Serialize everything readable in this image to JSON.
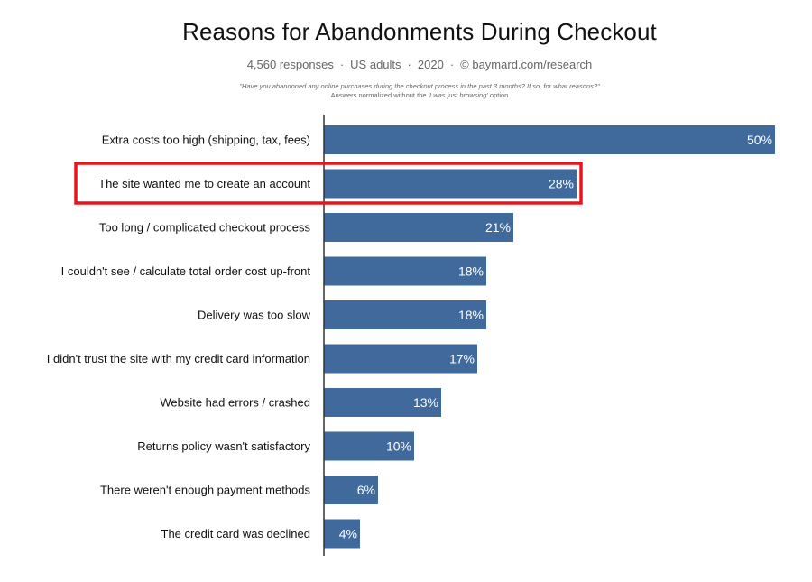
{
  "header": {
    "title": "Reasons for Abandonments During Checkout",
    "subtitle_parts": [
      "4,560 responses",
      "US adults",
      "2020",
      "© baymard.com/research"
    ],
    "question": "\"Have you abandoned any online purchases during the checkout process in the past 3 months? If so, for what reasons?\"",
    "note_prefix": "Answers normalized without the ",
    "note_italic": "'I was just browsing'",
    "note_suffix": " option"
  },
  "colors": {
    "bar": "#3f6a9b",
    "highlight_box": "#e8141c",
    "axis": "#333333"
  },
  "chart_data": {
    "type": "bar",
    "orientation": "horizontal",
    "title": "Reasons for Abandonments During Checkout",
    "categories": [
      "Extra costs too high (shipping, tax, fees)",
      "The site wanted me to create an account",
      "Too long / complicated checkout process",
      "I couldn't see / calculate total order cost up-front",
      "Delivery was too slow",
      "I didn't trust the site with my credit card information",
      "Website had errors / crashed",
      "Returns policy wasn't satisfactory",
      "There weren't enough payment methods",
      "The credit card was declined"
    ],
    "values": [
      50,
      28,
      21,
      18,
      18,
      17,
      13,
      10,
      6,
      4
    ],
    "value_labels": [
      "50%",
      "28%",
      "21%",
      "18%",
      "18%",
      "17%",
      "13%",
      "10%",
      "6%",
      "4%"
    ],
    "unit": "%",
    "xlim": [
      0,
      50
    ],
    "highlighted_category_index": 1,
    "grid": false,
    "legend": "none"
  }
}
